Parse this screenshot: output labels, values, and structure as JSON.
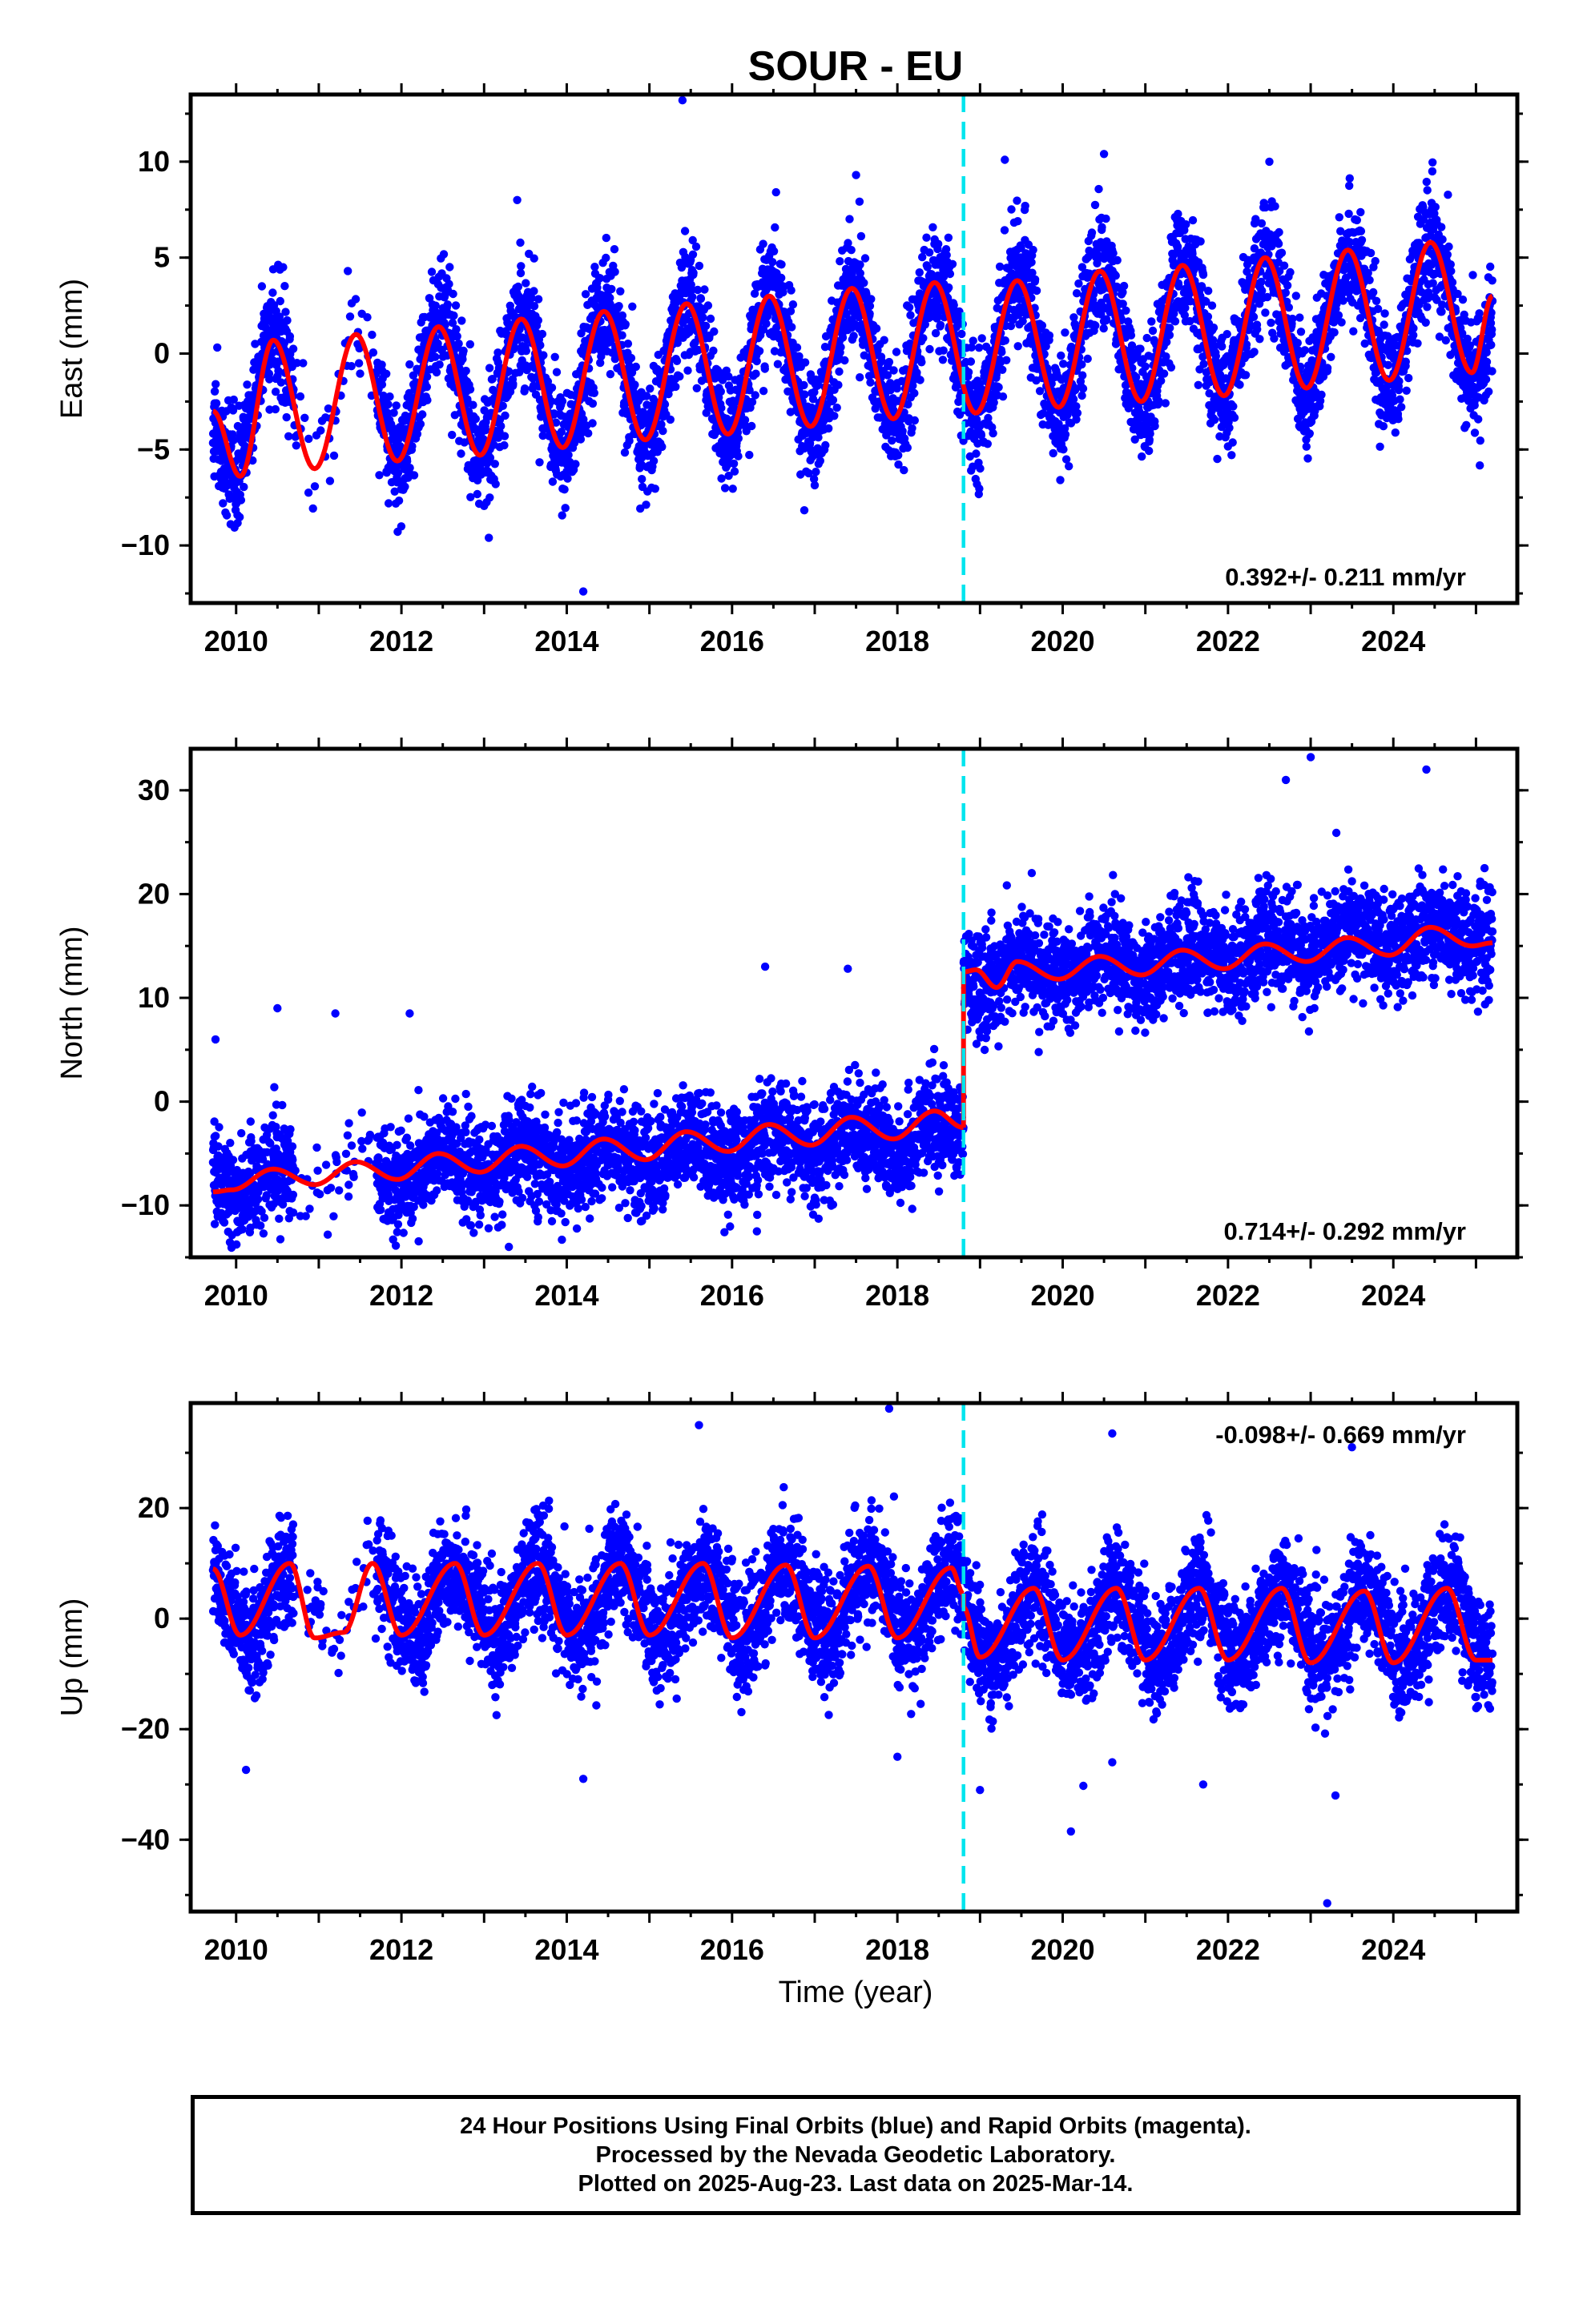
{
  "figure": {
    "title": "SOUR - EU",
    "xlabel": "Time (year)",
    "event_line_color": "#00e5ee",
    "point_color": "#0000ff",
    "fit_color": "#ff0000"
  },
  "caption": {
    "line1": "24 Hour Positions Using Final Orbits (blue) and Rapid Orbits (magenta).",
    "line2": "Processed by the Nevada Geodetic Laboratory.",
    "line3": "Plotted on 2025-Aug-23. Last data on 2025-Mar-14."
  },
  "chart_data": [
    {
      "type": "scatter",
      "component": "east",
      "ylabel": "East (mm)",
      "xlim": [
        2009.45,
        2025.5
      ],
      "ylim": [
        -13,
        13.5
      ],
      "yticks": [
        -10,
        -5,
        0,
        5,
        10
      ],
      "xticks": [
        2010,
        2012,
        2014,
        2016,
        2018,
        2020,
        2022,
        2024
      ],
      "velocity_label": "0.392+/- 0.211 mm/yr",
      "velocity_label_position": "bottom-right",
      "event_line_x": 2018.8,
      "data_range": [
        2009.72,
        2025.2
      ],
      "series": [
        {
          "kind": "points",
          "description_values": "daily positions",
          "trend": {
            "start": [
              2009.72,
              -2.8
            ],
            "end": [
              2025.2,
              2.4
            ]
          },
          "annual_amplitude": 3.6,
          "annual_peak": 0.46,
          "scatter_sd": 1.5,
          "outliers": [
            [
              2015.4,
              13.2
            ],
            [
              2014.2,
              -12.4
            ],
            [
              2019.3,
              10.1
            ],
            [
              2020.5,
              10.4
            ],
            [
              2022.5,
              10.0
            ],
            [
              2017.5,
              9.3
            ],
            [
              2013.4,
              8.0
            ]
          ]
        },
        {
          "kind": "model",
          "segments": [
            [
              2009.72,
              2025.2
            ]
          ],
          "peaks": [
            [
              2009.72,
              -3.0
            ],
            [
              2010.05,
              -6.4
            ],
            [
              2010.45,
              0.7
            ],
            [
              2010.95,
              -6.0
            ],
            [
              2011.45,
              1.0
            ],
            [
              2011.95,
              -5.6
            ],
            [
              2012.45,
              1.4
            ],
            [
              2012.95,
              -5.3
            ],
            [
              2013.45,
              1.8
            ],
            [
              2013.95,
              -4.9
            ],
            [
              2014.45,
              2.2
            ],
            [
              2014.95,
              -4.5
            ],
            [
              2015.45,
              2.6
            ],
            [
              2015.95,
              -4.2
            ],
            [
              2016.45,
              3.0
            ],
            [
              2016.95,
              -3.8
            ],
            [
              2017.45,
              3.4
            ],
            [
              2017.95,
              -3.4
            ],
            [
              2018.45,
              3.7
            ],
            [
              2018.95,
              -3.1
            ],
            [
              2019.45,
              3.8
            ],
            [
              2019.95,
              -2.8
            ],
            [
              2020.45,
              4.3
            ],
            [
              2020.95,
              -2.5
            ],
            [
              2021.45,
              4.6
            ],
            [
              2021.95,
              -2.2
            ],
            [
              2022.45,
              5.0
            ],
            [
              2022.95,
              -1.8
            ],
            [
              2023.45,
              5.4
            ],
            [
              2023.95,
              -1.4
            ],
            [
              2024.45,
              5.8
            ],
            [
              2024.95,
              -1.0
            ],
            [
              2025.2,
              3.0
            ]
          ]
        }
      ]
    },
    {
      "type": "scatter",
      "component": "north",
      "ylabel": "North (mm)",
      "xlim": [
        2009.45,
        2025.5
      ],
      "ylim": [
        -15,
        34
      ],
      "yticks": [
        -10,
        0,
        10,
        20,
        30
      ],
      "xticks": [
        2010,
        2012,
        2014,
        2016,
        2018,
        2020,
        2022,
        2024
      ],
      "velocity_label": "0.714+/- 0.292 mm/yr",
      "velocity_label_position": "bottom-right",
      "event_line_x": 2018.8,
      "data_range": [
        2009.72,
        2025.2
      ],
      "series": [
        {
          "kind": "points",
          "trend_before": {
            "start": [
              2009.72,
              -7.8
            ],
            "end": [
              2018.8,
              -3.0
            ]
          },
          "trend_after": {
            "start": [
              2018.8,
              12.0
            ],
            "end": [
              2025.2,
              16.5
            ]
          },
          "annual_amplitude": 1.2,
          "annual_peak": 0.5,
          "scatter_sd": 2.4,
          "outliers": [
            [
              2023.0,
              33.2
            ],
            [
              2024.4,
              32.0
            ],
            [
              2022.7,
              31.0
            ],
            [
              2009.75,
              6.0
            ],
            [
              2010.5,
              9.0
            ],
            [
              2011.2,
              8.5
            ],
            [
              2012.1,
              8.5
            ],
            [
              2016.4,
              13.0
            ],
            [
              2017.4,
              12.8
            ],
            [
              2013.3,
              -14.0
            ],
            [
              2016.3,
              -12.5
            ]
          ]
        },
        {
          "kind": "model",
          "segments": [
            [
              2009.72,
              2018.8
            ],
            [
              2018.8,
              2025.2
            ]
          ],
          "peaks": [
            [
              2009.72,
              -8.7
            ],
            [
              2009.95,
              -8.5
            ],
            [
              2010.45,
              -6.5
            ],
            [
              2010.95,
              -8.0
            ],
            [
              2011.45,
              -5.8
            ],
            [
              2011.95,
              -7.5
            ],
            [
              2012.45,
              -5.0
            ],
            [
              2012.95,
              -6.8
            ],
            [
              2013.45,
              -4.3
            ],
            [
              2013.95,
              -6.2
            ],
            [
              2014.45,
              -3.6
            ],
            [
              2014.95,
              -5.6
            ],
            [
              2015.45,
              -2.9
            ],
            [
              2015.95,
              -4.8
            ],
            [
              2016.45,
              -2.2
            ],
            [
              2016.95,
              -4.2
            ],
            [
              2017.45,
              -1.5
            ],
            [
              2017.95,
              -3.6
            ],
            [
              2018.45,
              -0.9
            ],
            [
              2018.8,
              -2.5
            ],
            [
              2018.8,
              12.5
            ],
            [
              2018.95,
              12.7
            ],
            [
              2019.2,
              11.0
            ],
            [
              2019.45,
              13.5
            ],
            [
              2019.95,
              11.8
            ],
            [
              2020.45,
              14.0
            ],
            [
              2020.95,
              12.2
            ],
            [
              2021.45,
              14.6
            ],
            [
              2021.95,
              12.8
            ],
            [
              2022.45,
              15.2
            ],
            [
              2022.95,
              13.5
            ],
            [
              2023.45,
              15.8
            ],
            [
              2023.95,
              14.1
            ],
            [
              2024.45,
              16.8
            ],
            [
              2024.95,
              15.0
            ],
            [
              2025.2,
              15.3
            ]
          ]
        }
      ]
    },
    {
      "type": "scatter",
      "component": "up",
      "ylabel": "Up (mm)",
      "xlim": [
        2009.45,
        2025.5
      ],
      "ylim": [
        -53,
        39
      ],
      "yticks": [
        -40,
        -20,
        0,
        20
      ],
      "xticks": [
        2010,
        2012,
        2014,
        2016,
        2018,
        2020,
        2022,
        2024
      ],
      "velocity_label": "-0.098+/- 0.669 mm/yr",
      "velocity_label_position": "top-right",
      "event_line_x": 2018.8,
      "data_range": [
        2009.72,
        2025.2
      ],
      "series": [
        {
          "kind": "points",
          "trend_before": {
            "start": [
              2009.72,
              3.0
            ],
            "end": [
              2018.8,
              3.0
            ]
          },
          "trend_after": {
            "start": [
              2018.8,
              -1.0
            ],
            "end": [
              2025.2,
              -1.0
            ]
          },
          "annual_amplitude": 6.5,
          "annual_peak": 0.65,
          "scatter_sd": 5.0,
          "outliers": [
            [
              2017.9,
              38.0
            ],
            [
              2015.6,
              35.0
            ],
            [
              2020.6,
              33.5
            ],
            [
              2023.5,
              31.0
            ],
            [
              2023.2,
              -51.5
            ],
            [
              2020.1,
              -38.5
            ],
            [
              2023.3,
              -32.0
            ],
            [
              2014.2,
              -29.0
            ],
            [
              2021.7,
              -30.0
            ],
            [
              2019.0,
              -31.0
            ],
            [
              2018.0,
              -25.0
            ],
            [
              2020.6,
              -26.0
            ]
          ]
        },
        {
          "kind": "model",
          "segments": [
            [
              2009.72,
              2018.8
            ],
            [
              2018.8,
              2025.2
            ]
          ],
          "peaks": [
            [
              2009.72,
              9.0
            ],
            [
              2010.05,
              -3.0
            ],
            [
              2010.65,
              10.0
            ],
            [
              2010.95,
              -3.5
            ],
            [
              2011.3,
              -2.5
            ],
            [
              2011.65,
              10.0
            ],
            [
              2012.0,
              -3.0
            ],
            [
              2012.65,
              10.0
            ],
            [
              2013.0,
              -3.0
            ],
            [
              2013.65,
              10.0
            ],
            [
              2014.0,
              -3.0
            ],
            [
              2014.65,
              10.0
            ],
            [
              2015.0,
              -3.0
            ],
            [
              2015.65,
              10.0
            ],
            [
              2016.0,
              -3.5
            ],
            [
              2016.65,
              9.7
            ],
            [
              2017.0,
              -3.5
            ],
            [
              2017.65,
              9.5
            ],
            [
              2018.0,
              -3.5
            ],
            [
              2018.65,
              9.2
            ],
            [
              2018.8,
              4.5
            ],
            [
              2018.8,
              2.0
            ],
            [
              2019.0,
              -7.0
            ],
            [
              2019.65,
              5.5
            ],
            [
              2020.0,
              -7.5
            ],
            [
              2020.65,
              5.5
            ],
            [
              2021.0,
              -7.5
            ],
            [
              2021.65,
              5.5
            ],
            [
              2022.0,
              -7.5
            ],
            [
              2022.65,
              5.5
            ],
            [
              2023.0,
              -8.0
            ],
            [
              2023.65,
              5.0
            ],
            [
              2024.0,
              -8.0
            ],
            [
              2024.65,
              5.5
            ],
            [
              2025.0,
              -7.5
            ],
            [
              2025.2,
              -7.5
            ]
          ]
        }
      ]
    }
  ]
}
